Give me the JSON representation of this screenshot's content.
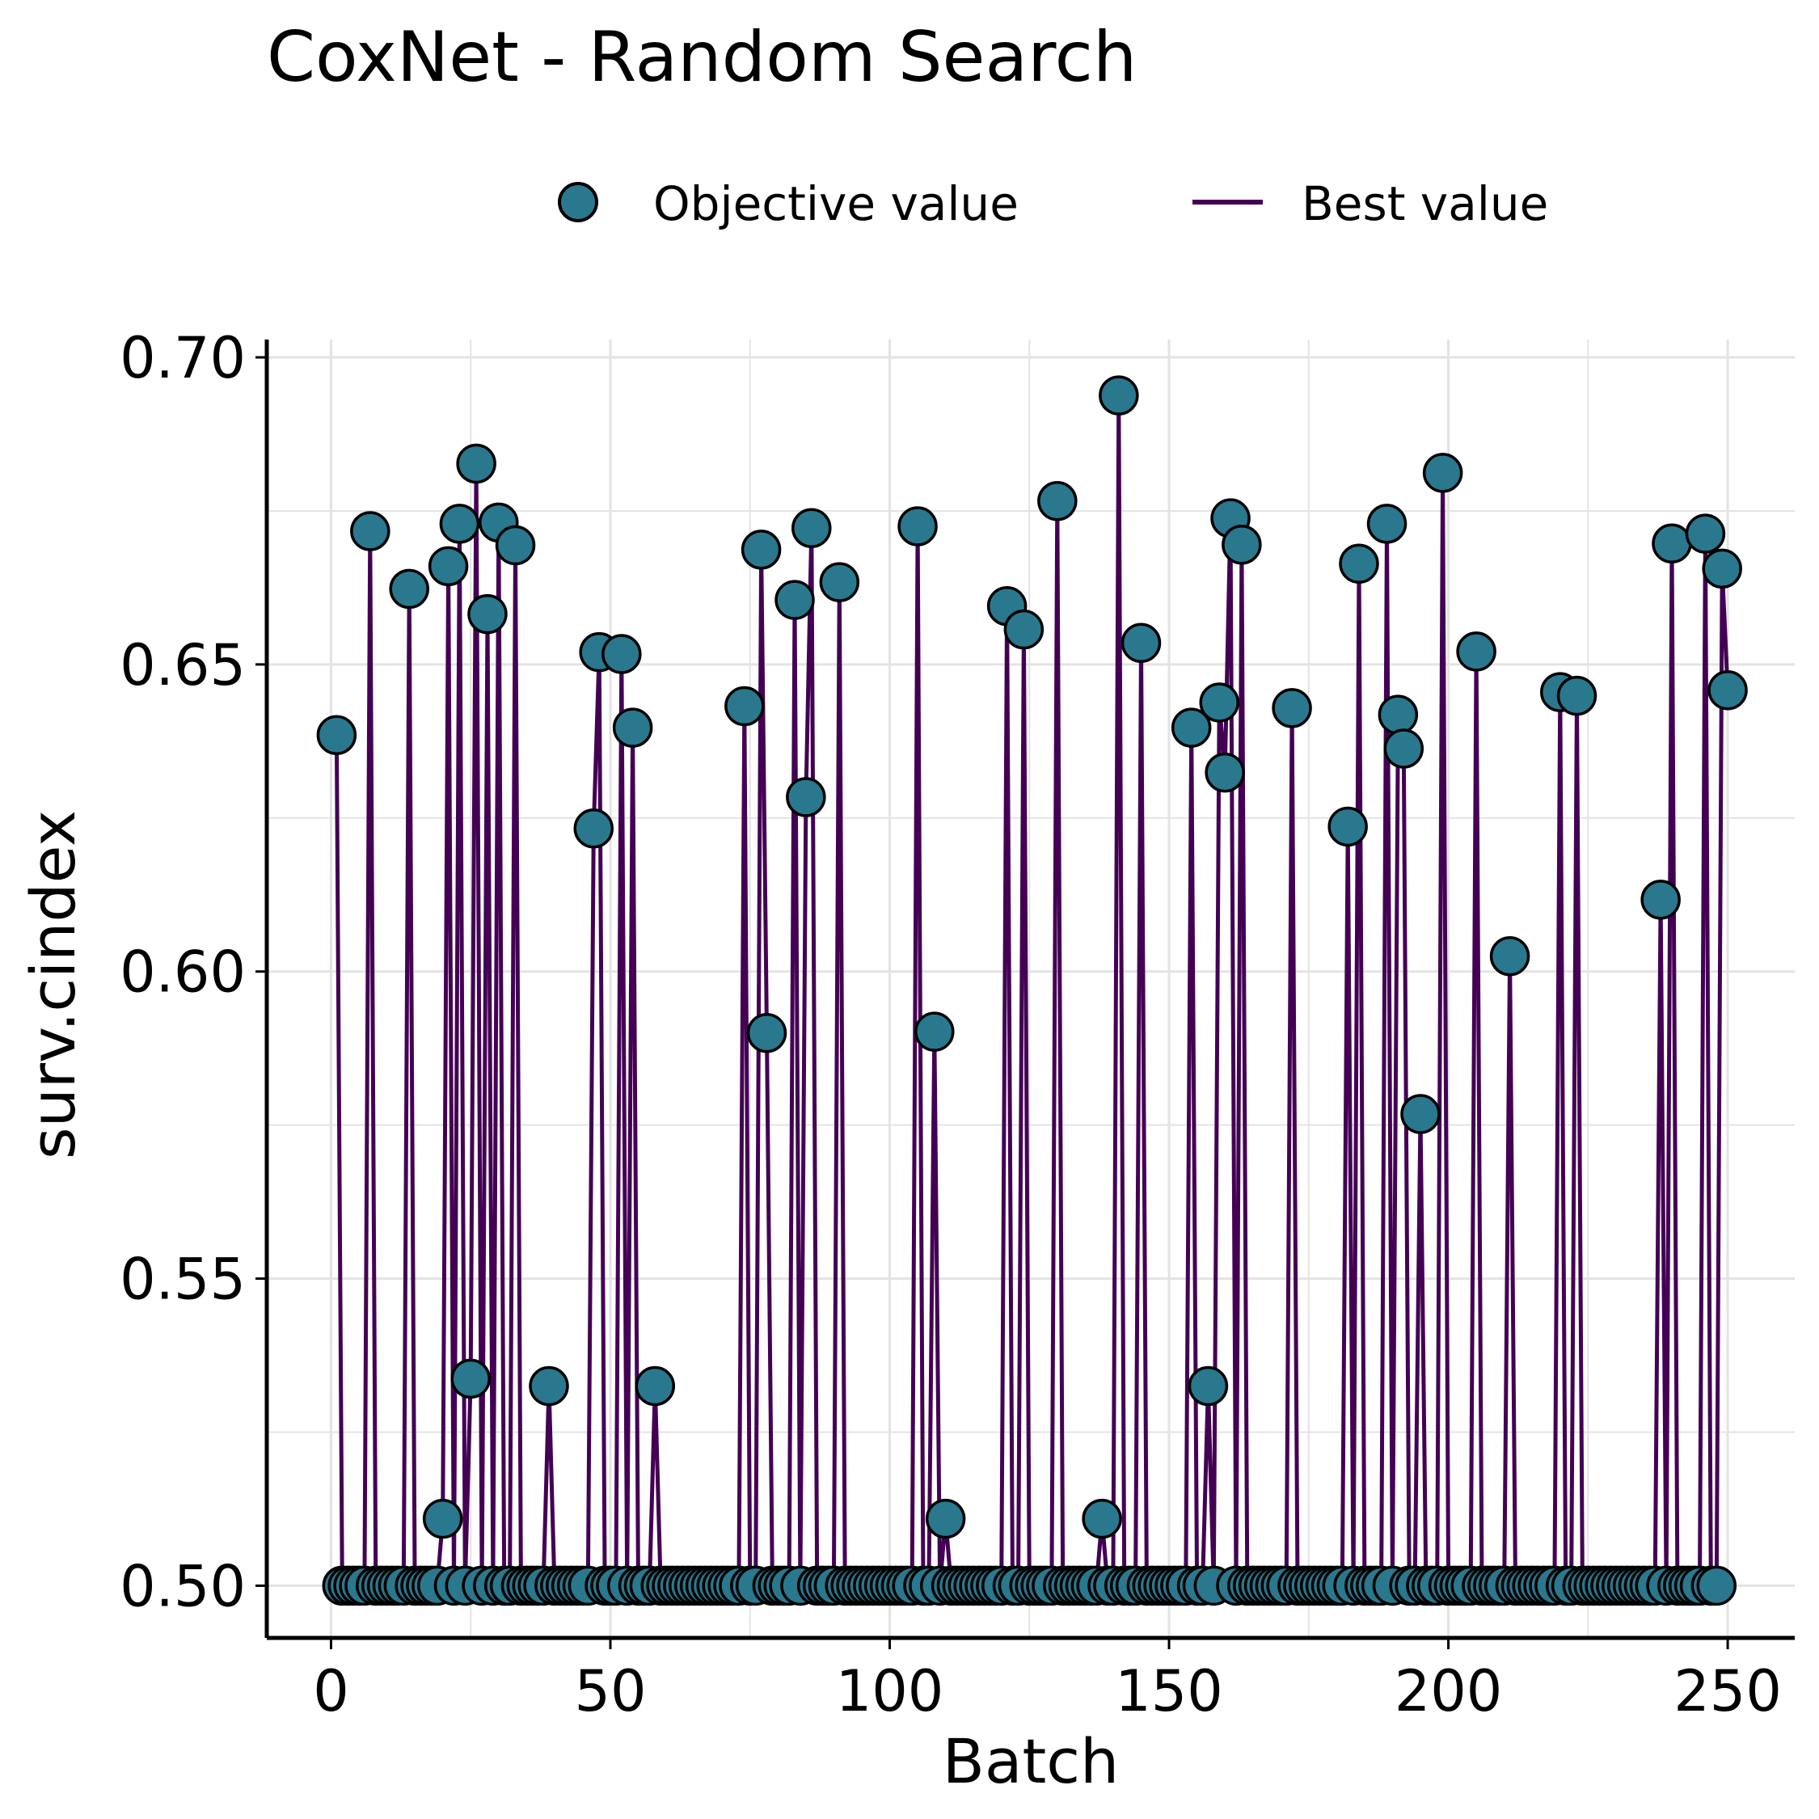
{
  "chart_data": {
    "type": "scatter",
    "title": "CoxNet - Random Search",
    "xlabel": "Batch",
    "ylabel": "surv.cindex",
    "xlim": [
      -11.5,
      262
    ],
    "ylim": [
      0.4915,
      0.7029
    ],
    "xticks": [
      0,
      50,
      100,
      150,
      200,
      250
    ],
    "xtick_labels": [
      "0",
      "50",
      "100",
      "150",
      "200",
      "250"
    ],
    "yticks": [
      0.5,
      0.55,
      0.6,
      0.65,
      0.7
    ],
    "ytick_labels": [
      "0.50",
      "0.55",
      "0.60",
      "0.65",
      "0.70"
    ],
    "grid": true,
    "legend_position": "top",
    "colors": {
      "objective_fill": "#2a788e",
      "objective_edge": "#000000",
      "best_line": "#440154",
      "grid": "#e3e3e3"
    },
    "series": [
      {
        "name": "Objective value",
        "kind": "points"
      },
      {
        "name": "Best value",
        "kind": "line"
      }
    ],
    "high_points": [
      [
        1,
        0.6385
      ],
      [
        7,
        0.6717
      ],
      [
        14,
        0.6623
      ],
      [
        20,
        0.5109
      ],
      [
        21,
        0.666
      ],
      [
        23,
        0.6729
      ],
      [
        25,
        0.5337
      ],
      [
        26,
        0.6827
      ],
      [
        28,
        0.6582
      ],
      [
        30,
        0.6731
      ],
      [
        33,
        0.6694
      ],
      [
        39,
        0.5325
      ],
      [
        47,
        0.6233
      ],
      [
        48,
        0.652
      ],
      [
        52,
        0.6517
      ],
      [
        54,
        0.6397
      ],
      [
        58,
        0.5325
      ],
      [
        74,
        0.6432
      ],
      [
        77,
        0.6687
      ],
      [
        78,
        0.59
      ],
      [
        83,
        0.6605
      ],
      [
        85,
        0.6284
      ],
      [
        86,
        0.6722
      ],
      [
        91,
        0.6634
      ],
      [
        105,
        0.6725
      ],
      [
        108,
        0.5902
      ],
      [
        110,
        0.5109
      ],
      [
        121,
        0.6595
      ],
      [
        124,
        0.6557
      ],
      [
        130,
        0.6766
      ],
      [
        138,
        0.5109
      ],
      [
        141,
        0.6938
      ],
      [
        145,
        0.6535
      ],
      [
        154,
        0.6397
      ],
      [
        157,
        0.5325
      ],
      [
        159,
        0.6438
      ],
      [
        160,
        0.6324
      ],
      [
        161,
        0.6738
      ],
      [
        163,
        0.6695
      ],
      [
        172,
        0.6429
      ],
      [
        182,
        0.6236
      ],
      [
        184,
        0.6664
      ],
      [
        189,
        0.6729
      ],
      [
        191,
        0.6418
      ],
      [
        192,
        0.6363
      ],
      [
        195,
        0.5768
      ],
      [
        199,
        0.6812
      ],
      [
        205,
        0.6521
      ],
      [
        211,
        0.6025
      ],
      [
        220,
        0.6455
      ],
      [
        223,
        0.6449
      ],
      [
        238,
        0.6117
      ],
      [
        240,
        0.6697
      ],
      [
        246,
        0.6713
      ],
      [
        249,
        0.6656
      ],
      [
        250,
        0.6458
      ]
    ],
    "baseline_value": 0.5,
    "baseline_batches": [
      2,
      3,
      4,
      5,
      6,
      8,
      9,
      10,
      11,
      12,
      13,
      15,
      16,
      17,
      18,
      19,
      22,
      24,
      27,
      29,
      31,
      32,
      34,
      35,
      36,
      37,
      38,
      40,
      41,
      42,
      43,
      44,
      45,
      46,
      49,
      50,
      51,
      53,
      55,
      56,
      57,
      59,
      60,
      61,
      62,
      63,
      64,
      65,
      66,
      67,
      68,
      69,
      70,
      71,
      72,
      73,
      75,
      76,
      79,
      80,
      81,
      82,
      84,
      87,
      88,
      89,
      90,
      92,
      93,
      94,
      95,
      96,
      97,
      98,
      99,
      100,
      101,
      102,
      103,
      104,
      106,
      107,
      109,
      111,
      112,
      113,
      114,
      115,
      116,
      117,
      118,
      119,
      120,
      122,
      123,
      125,
      126,
      127,
      128,
      129,
      131,
      132,
      133,
      134,
      135,
      136,
      137,
      139,
      140,
      142,
      143,
      144,
      146,
      147,
      148,
      149,
      150,
      151,
      152,
      153,
      155,
      156,
      158,
      162,
      164,
      165,
      166,
      167,
      168,
      169,
      170,
      171,
      173,
      174,
      175,
      176,
      177,
      178,
      179,
      180,
      181,
      183,
      185,
      186,
      187,
      188,
      190,
      193,
      194,
      196,
      197,
      198,
      200,
      201,
      202,
      203,
      204,
      206,
      207,
      208,
      209,
      210,
      212,
      213,
      214,
      215,
      216,
      217,
      218,
      219,
      221,
      222,
      224,
      225,
      226,
      227,
      228,
      229,
      230,
      231,
      232,
      233,
      234,
      235,
      236,
      237,
      239,
      241,
      242,
      243,
      244,
      245,
      247,
      248
    ]
  }
}
